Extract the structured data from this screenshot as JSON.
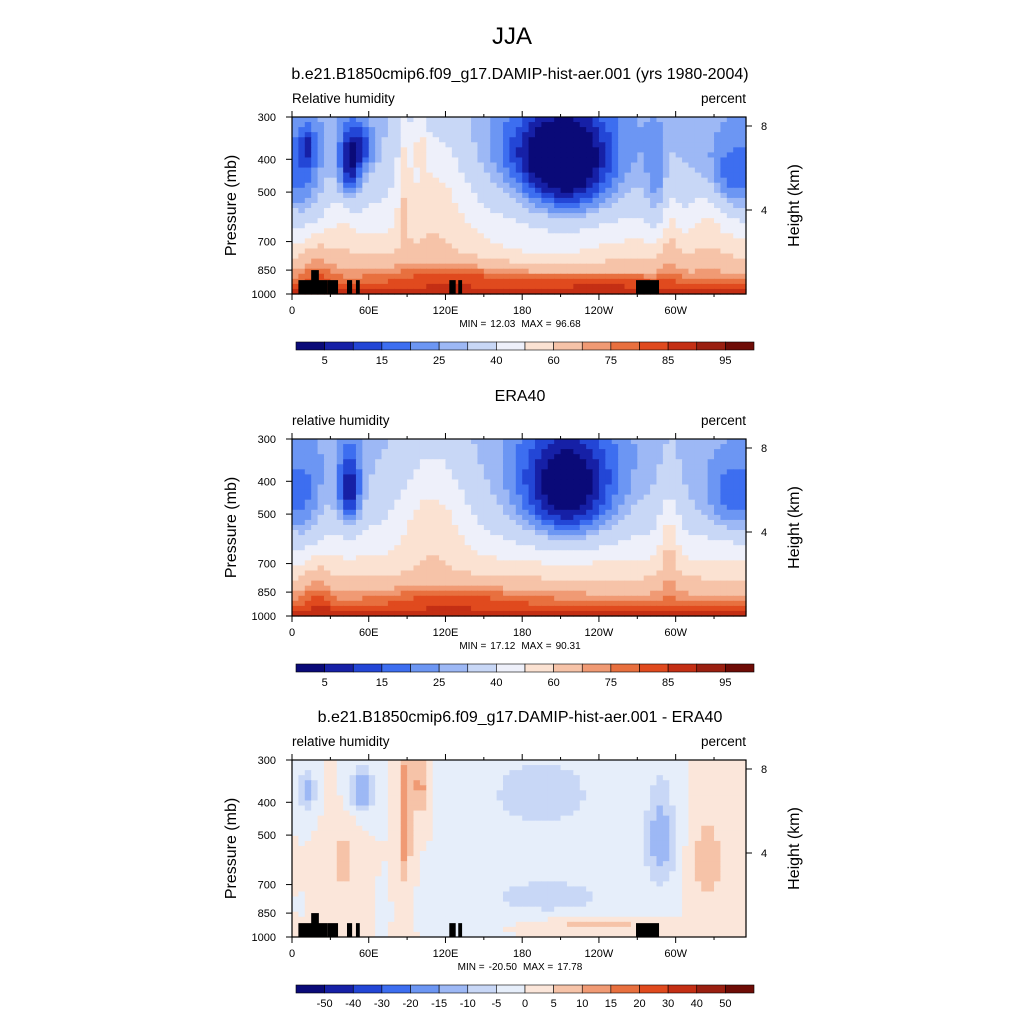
{
  "figure": {
    "title": "JJA",
    "season": "JJA"
  },
  "colorscales": {
    "abs": {
      "colors": [
        "#0a0a78",
        "#1620a6",
        "#2346d6",
        "#3d6ef0",
        "#6c96f3",
        "#9db8f5",
        "#c8d7f6",
        "#eef0fa",
        "#fbe2d2",
        "#f6c3a8",
        "#f09a74",
        "#e8703f",
        "#e04a1e",
        "#c42f14",
        "#9a1f10",
        "#6e0c06"
      ],
      "tick_labels": [
        "5",
        "15",
        "25",
        "40",
        "60",
        "75",
        "85",
        "95"
      ],
      "levels": [
        0,
        5,
        10,
        15,
        20,
        25,
        30,
        40,
        50,
        60,
        70,
        75,
        80,
        85,
        90,
        95,
        100
      ]
    },
    "diff": {
      "colors": [
        "#0a0a78",
        "#1620a6",
        "#2346d6",
        "#3d6ef0",
        "#6c96f3",
        "#9db8f5",
        "#c8d7f6",
        "#e6eefa",
        "#fbe6da",
        "#f6c3a8",
        "#f09a74",
        "#e8703f",
        "#e04a1e",
        "#c42f14",
        "#9a1f10",
        "#6e0c06"
      ],
      "tick_labels": [
        "-50",
        "-40",
        "-30",
        "-20",
        "-15",
        "-10",
        "-5",
        "0",
        "5",
        "10",
        "15",
        "20",
        "30",
        "40",
        "50"
      ],
      "levels": [
        -60,
        -50,
        -40,
        -30,
        -20,
        -15,
        -10,
        -5,
        0,
        5,
        10,
        15,
        20,
        30,
        40,
        50,
        60
      ]
    }
  },
  "chart_data": [
    {
      "type": "heatmap",
      "title": "b.e21.B1850cmip6.f09_g17.DAMIP-hist-aer.001 (yrs 1980-2004)",
      "left_label": "Relative humidity",
      "right_label": "percent",
      "ylabel": "Pressure (mb)",
      "ylabel_right": "Height (km)",
      "x_ticks": [
        "0",
        "60E",
        "120E",
        "180",
        "120W",
        "60W"
      ],
      "x_tick_values": [
        0,
        60,
        120,
        180,
        240,
        300
      ],
      "xlim": [
        0,
        355
      ],
      "y_ticks": [
        "300",
        "400",
        "500",
        "700",
        "850",
        "1000"
      ],
      "y_tick_values": [
        300,
        400,
        500,
        700,
        850,
        1000
      ],
      "ylim": [
        1000,
        300
      ],
      "right_ticks": [
        "8",
        "4"
      ],
      "right_tick_values": [
        8,
        4
      ],
      "min_label": "MIN =",
      "min_value": "12.03",
      "max_label": "MAX =",
      "max_value": "96.68",
      "colorscale": "abs",
      "field": "model",
      "topography": true
    },
    {
      "type": "heatmap",
      "title": "ERA40",
      "left_label": "relative humidity",
      "right_label": "percent",
      "ylabel": "Pressure (mb)",
      "ylabel_right": "Height (km)",
      "x_ticks": [
        "0",
        "60E",
        "120E",
        "180",
        "120W",
        "60W"
      ],
      "x_tick_values": [
        0,
        60,
        120,
        180,
        240,
        300
      ],
      "xlim": [
        0,
        355
      ],
      "y_ticks": [
        "300",
        "400",
        "500",
        "700",
        "850",
        "1000"
      ],
      "y_tick_values": [
        300,
        400,
        500,
        700,
        850,
        1000
      ],
      "ylim": [
        1000,
        300
      ],
      "right_ticks": [
        "8",
        "4"
      ],
      "right_tick_values": [
        8,
        4
      ],
      "min_label": "MIN =",
      "min_value": "17.12",
      "max_label": "MAX =",
      "max_value": "90.31",
      "colorscale": "abs",
      "field": "obs",
      "topography": false
    },
    {
      "type": "heatmap",
      "title": "b.e21.B1850cmip6.f09_g17.DAMIP-hist-aer.001 - ERA40",
      "left_label": "relative humidity",
      "right_label": "percent",
      "ylabel": "Pressure (mb)",
      "ylabel_right": "Height (km)",
      "x_ticks": [
        "0",
        "60E",
        "120E",
        "180",
        "120W",
        "60W"
      ],
      "x_tick_values": [
        0,
        60,
        120,
        180,
        240,
        300
      ],
      "xlim": [
        0,
        355
      ],
      "y_ticks": [
        "300",
        "400",
        "500",
        "700",
        "850",
        "1000"
      ],
      "y_tick_values": [
        300,
        400,
        500,
        700,
        850,
        1000
      ],
      "ylim": [
        1000,
        300
      ],
      "right_ticks": [
        "8",
        "4"
      ],
      "right_tick_values": [
        8,
        4
      ],
      "min_label": "MIN =",
      "min_value": "-20.50",
      "max_label": "MAX =",
      "max_value": "17.78",
      "colorscale": "diff",
      "field": "diff",
      "topography": true
    }
  ]
}
